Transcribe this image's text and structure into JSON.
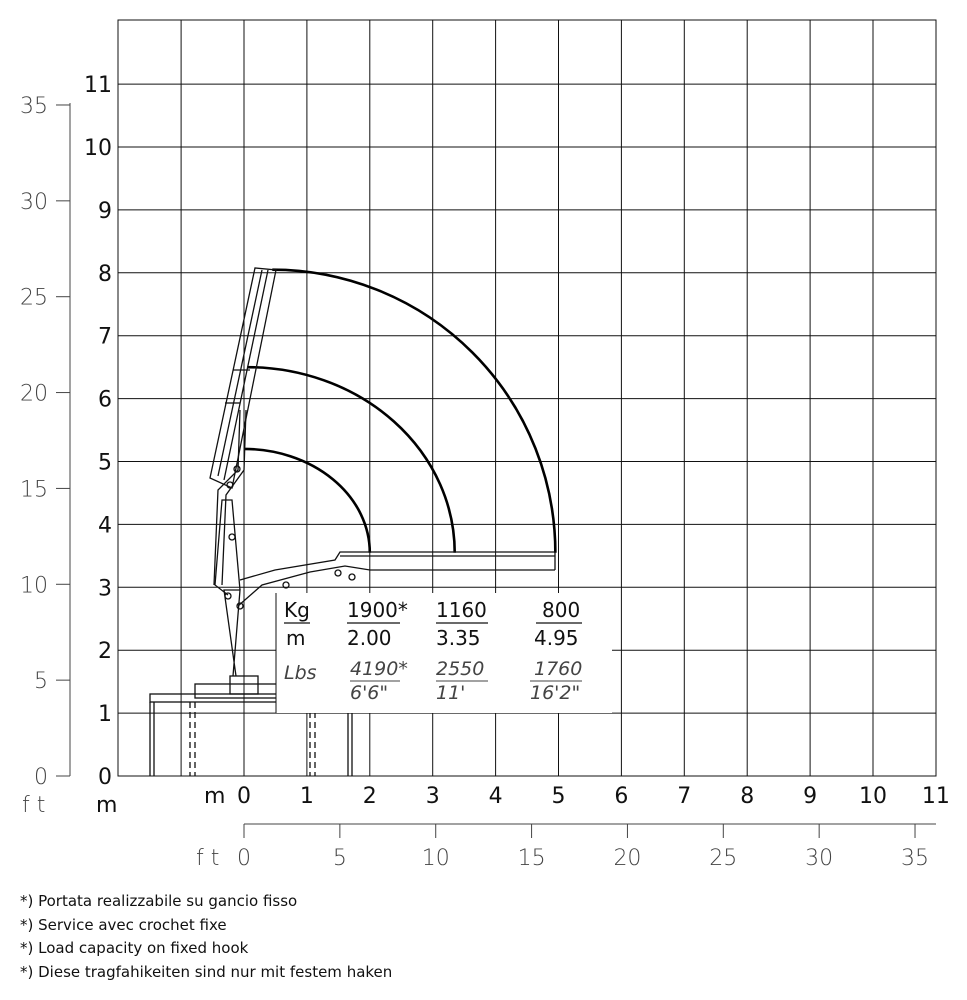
{
  "chart_data": {
    "type": "load-chart",
    "x_axis_m": {
      "unit_label": "m",
      "ticks": [
        "0",
        "1",
        "2",
        "3",
        "4",
        "5",
        "6",
        "7",
        "8",
        "9",
        "10",
        "11"
      ]
    },
    "x_axis_ft": {
      "unit_label": "ft",
      "ticks": [
        "0",
        "5",
        "10",
        "15",
        "20",
        "25",
        "30",
        "35"
      ]
    },
    "y_axis_m": {
      "unit_label": "m",
      "ticks": [
        "0",
        "1",
        "2",
        "3",
        "4",
        "5",
        "6",
        "7",
        "8",
        "9",
        "10",
        "11"
      ]
    },
    "y_axis_ft": {
      "unit_label": "ft",
      "ticks": [
        "0",
        "5",
        "10",
        "15",
        "20",
        "25",
        "30",
        "35"
      ]
    },
    "load_table": {
      "kg_label": "Kg",
      "m_label": "m",
      "lbs_label": "Lbs",
      "columns": [
        {
          "kg": "1900*",
          "m": "2.00",
          "lbs": "4190*",
          "ft": "6'6\""
        },
        {
          "kg": "1160",
          "m": "3.35",
          "lbs": "2550",
          "ft": "11'"
        },
        {
          "kg": "800",
          "m": "4.95",
          "lbs": "1760",
          "ft": "16'2\""
        }
      ]
    },
    "reach_arcs": [
      {
        "max_height_m": 5.2,
        "max_reach_m": 2.0
      },
      {
        "max_height_m": 6.5,
        "max_reach_m": 3.35
      },
      {
        "max_height_m": 8.05,
        "max_reach_m": 4.95
      }
    ]
  },
  "notes": [
    "*) Portata realizzabile su gancio fisso",
    "*) Service avec crochet fixe",
    "*) Load capacity on fixed hook",
    "*) Diese tragfahikeiten sind nur mit festem haken"
  ]
}
